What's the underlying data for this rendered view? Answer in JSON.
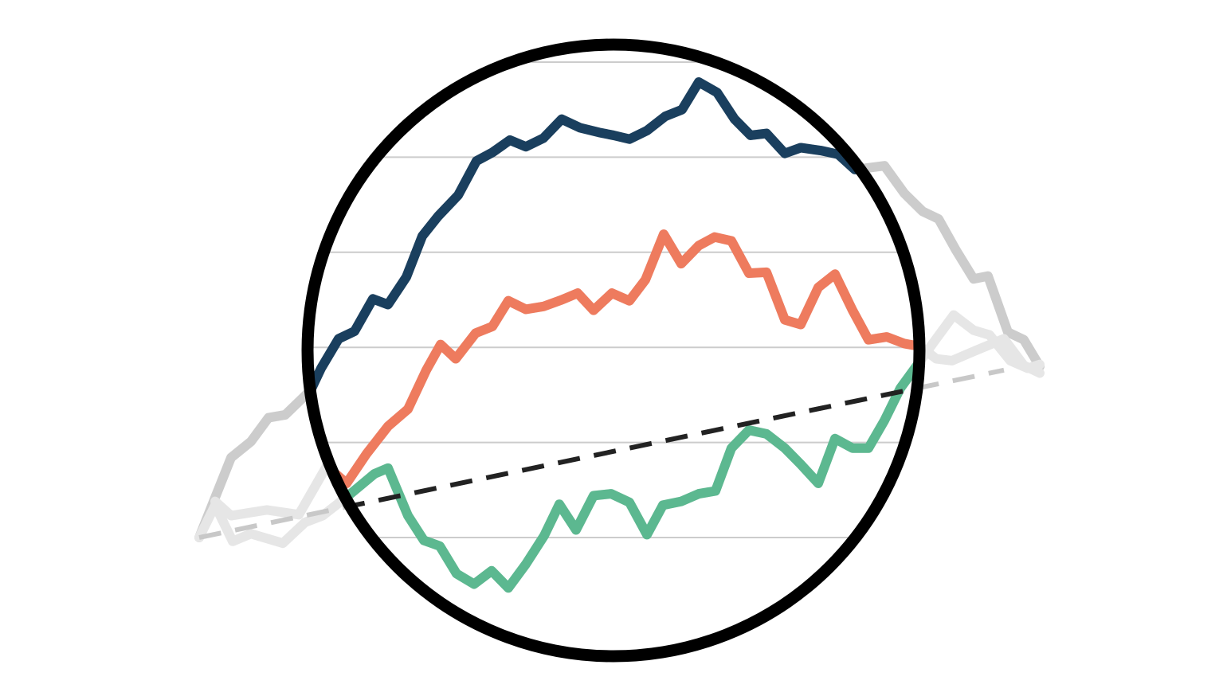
{
  "chart_data": {
    "type": "line",
    "xlim": [
      0,
      105.5
    ],
    "ylim": [
      0,
      5
    ],
    "yticks": [
      0,
      1,
      2,
      3,
      4,
      5
    ],
    "grid": true,
    "lens_color": "#000000",
    "grid_color": "#cccccc",
    "series": [
      {
        "color": "#1a3f5e",
        "outside_color": "#cccccc",
        "x": [
          0,
          4,
          6.5,
          8.7,
          10.8,
          14,
          15.3,
          17.5,
          19.5,
          21.8,
          23.7,
          26,
          28,
          30,
          32.5,
          34.8,
          36.8,
          39,
          41,
          43.2,
          45.5,
          47.8,
          50.2,
          52,
          54,
          56.2,
          58.5,
          60.6,
          62.7,
          65,
          67.2,
          69.2,
          71.2,
          73.5,
          75.5,
          78,
          80.2,
          82.3,
          86,
          88.5,
          90.8,
          92.8,
          95,
          97.2,
          99,
          101.5,
          103.5,
          105.5
        ],
        "values": [
          0,
          0.84,
          1.01,
          1.26,
          1.29,
          1.55,
          1.78,
          2.09,
          2.17,
          2.51,
          2.45,
          2.74,
          3.17,
          3.38,
          3.6,
          3.96,
          4.05,
          4.18,
          4.11,
          4.2,
          4.4,
          4.31,
          4.26,
          4.23,
          4.19,
          4.28,
          4.43,
          4.5,
          4.79,
          4.68,
          4.4,
          4.23,
          4.25,
          4.04,
          4.1,
          4.07,
          4.03,
          3.87,
          3.91,
          3.62,
          3.43,
          3.35,
          3.02,
          2.72,
          2.75,
          2.16,
          2.08,
          1.8
        ]
      },
      {
        "color": "#ee7b5e",
        "outside_color": "#e6e6e6",
        "x": [
          2,
          4,
          8.5,
          12.5,
          16,
          18.5,
          21,
          23.7,
          26.2,
          28.5,
          30.3,
          32.2,
          34.7,
          36.8,
          38.8,
          41,
          43.2,
          45.5,
          47.5,
          49.5,
          51.8,
          54,
          56,
          58.3,
          60.5,
          62.7,
          64.7,
          66.8,
          69,
          71.2,
          73.5,
          75.5,
          77.7,
          79.8,
          82,
          84,
          86.3,
          88.5,
          90.5,
          92.5,
          94.5,
          97,
          101,
          103.5,
          105.5
        ],
        "values": [
          0.38,
          0.23,
          0.29,
          0.24,
          0.75,
          0.57,
          0.88,
          1.17,
          1.35,
          1.76,
          2.03,
          1.88,
          2.15,
          2.22,
          2.49,
          2.4,
          2.43,
          2.5,
          2.57,
          2.39,
          2.57,
          2.49,
          2.71,
          3.19,
          2.88,
          3.07,
          3.16,
          3.12,
          2.78,
          2.79,
          2.29,
          2.24,
          2.63,
          2.77,
          2.39,
          2.08,
          2.11,
          2.04,
          2.01,
          1.88,
          1.86,
          1.95,
          2.09,
          1.81,
          1.73
        ]
      },
      {
        "color": "#5cb890",
        "outside_color": "#e6e6e6",
        "x": [
          0,
          2,
          4.2,
          6.5,
          10.5,
          13.3,
          15.5,
          19,
          22,
          23.7,
          26.2,
          28.2,
          30.2,
          32.3,
          34.5,
          36.7,
          38.8,
          41,
          43.3,
          45.2,
          47.3,
          49.5,
          51.7,
          54,
          56.2,
          58.2,
          60.5,
          62.7,
          64.8,
          66.8,
          69,
          71.2,
          73.5,
          75.5,
          77.7,
          79.8,
          82,
          84,
          86,
          88,
          90,
          92.5,
          94.7,
          97.2,
          99.2,
          101.8,
          104,
          105.5
        ],
        "values": [
          0,
          0.34,
          -0.04,
          0.04,
          -0.06,
          0.16,
          0.23,
          0.46,
          0.67,
          0.73,
          0.23,
          -0.03,
          -0.09,
          -0.38,
          -0.49,
          -0.35,
          -0.53,
          -0.28,
          0.02,
          0.35,
          0.08,
          0.44,
          0.46,
          0.37,
          0.03,
          0.34,
          0.38,
          0.46,
          0.49,
          0.94,
          1.13,
          1.09,
          0.94,
          0.77,
          0.57,
          1.04,
          0.94,
          0.94,
          1.23,
          1.57,
          1.8,
          2.09,
          2.34,
          2.18,
          2.13,
          1.86,
          1.78,
          1.82
        ]
      },
      {
        "color": "#222222",
        "outside_color": "#c8c8c8",
        "dashed": true,
        "x": [
          0,
          101
        ],
        "values": [
          0,
          1.76
        ]
      }
    ]
  }
}
